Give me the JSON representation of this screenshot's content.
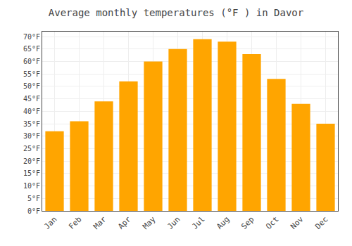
{
  "chart_data": {
    "type": "bar",
    "title": "Average monthly temperatures (°F ) in Davor",
    "categories": [
      "Jan",
      "Feb",
      "Mar",
      "Apr",
      "May",
      "Jun",
      "Jul",
      "Aug",
      "Sep",
      "Oct",
      "Nov",
      "Dec"
    ],
    "values": [
      32,
      36,
      44,
      52,
      60,
      65,
      69,
      68,
      63,
      53,
      43,
      35
    ],
    "color": "#FFA500",
    "ylim": [
      0,
      72
    ],
    "yticks": [
      {
        "value": 0,
        "label": "0°F"
      },
      {
        "value": 5,
        "label": "5°F"
      },
      {
        "value": 10,
        "label": "10°F"
      },
      {
        "value": 15,
        "label": "15°F"
      },
      {
        "value": 20,
        "label": "20°F"
      },
      {
        "value": 25,
        "label": "25°F"
      },
      {
        "value": 30,
        "label": "30°F"
      },
      {
        "value": 35,
        "label": "35°F"
      },
      {
        "value": 40,
        "label": "40°F"
      },
      {
        "value": 45,
        "label": "45°F"
      },
      {
        "value": 50,
        "label": "50°F"
      },
      {
        "value": 55,
        "label": "55°F"
      },
      {
        "value": 60,
        "label": "60°F"
      },
      {
        "value": 65,
        "label": "65°F"
      },
      {
        "value": 70,
        "label": "70°F"
      }
    ],
    "grid": true
  }
}
